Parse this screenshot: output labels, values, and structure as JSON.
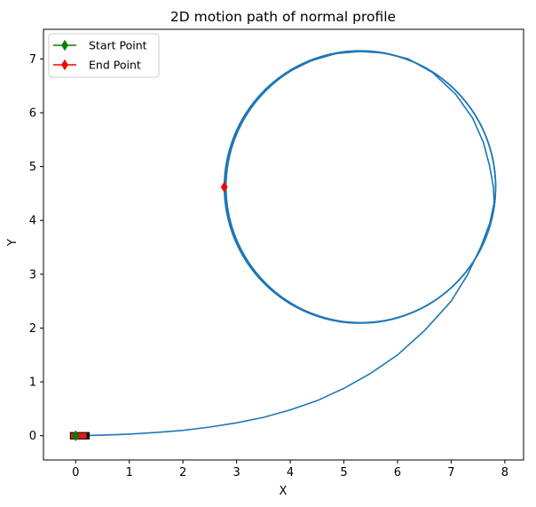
{
  "chart_data": {
    "type": "line",
    "title": "2D motion path of normal profile",
    "xlabel": "X",
    "ylabel": "Y",
    "xlim": [
      -0.6,
      8.35
    ],
    "ylim": [
      -0.45,
      7.55
    ],
    "xticks": [
      0,
      1,
      2,
      3,
      4,
      5,
      6,
      7,
      8
    ],
    "yticks": [
      0,
      1,
      2,
      3,
      4,
      5,
      6,
      7
    ],
    "grid": false,
    "legend_position": "top-left",
    "series": [
      {
        "name": "",
        "color": "#1f77b4",
        "kind": "path",
        "points": [
          [
            0.0,
            0.0
          ],
          [
            0.5,
            0.01
          ],
          [
            1.0,
            0.03
          ],
          [
            1.5,
            0.06
          ],
          [
            2.0,
            0.1
          ],
          [
            2.5,
            0.16
          ],
          [
            3.0,
            0.24
          ],
          [
            3.5,
            0.34
          ],
          [
            4.0,
            0.48
          ],
          [
            4.5,
            0.65
          ],
          [
            5.0,
            0.88
          ],
          [
            5.5,
            1.16
          ],
          [
            6.0,
            1.5
          ],
          [
            6.5,
            1.95
          ],
          [
            7.0,
            2.5
          ],
          [
            7.3,
            2.98
          ],
          [
            7.55,
            3.5
          ],
          [
            7.72,
            3.95
          ],
          [
            7.8,
            4.32
          ],
          [
            7.79,
            4.6
          ],
          [
            7.72,
            5.0
          ],
          [
            7.6,
            5.45
          ],
          [
            7.4,
            5.9
          ],
          [
            7.08,
            6.35
          ],
          [
            6.65,
            6.75
          ],
          [
            6.2,
            7.0
          ],
          [
            5.75,
            7.11
          ],
          [
            5.3,
            7.14
          ],
          [
            4.85,
            7.1
          ],
          [
            4.4,
            6.97
          ],
          [
            3.95,
            6.75
          ],
          [
            3.55,
            6.45
          ],
          [
            3.22,
            6.05
          ],
          [
            2.97,
            5.6
          ],
          [
            2.83,
            5.12
          ],
          [
            2.77,
            4.62
          ]
        ]
      },
      {
        "name": "",
        "color": "#1f77b4",
        "kind": "circle",
        "center": [
          5.3,
          4.62
        ],
        "radius": 2.53
      }
    ],
    "markers": [
      {
        "name": "Start Point",
        "x": 0.0,
        "y": 0.0,
        "color": "#008000",
        "marker": "diamond"
      },
      {
        "name": "End Point",
        "x": 2.77,
        "y": 4.62,
        "color": "#ff0000",
        "marker": "diamond"
      }
    ],
    "vehicle": {
      "x": 0.0,
      "y": 0.0,
      "length": 0.35,
      "width": 0.12,
      "color": "#e31a1c"
    }
  }
}
